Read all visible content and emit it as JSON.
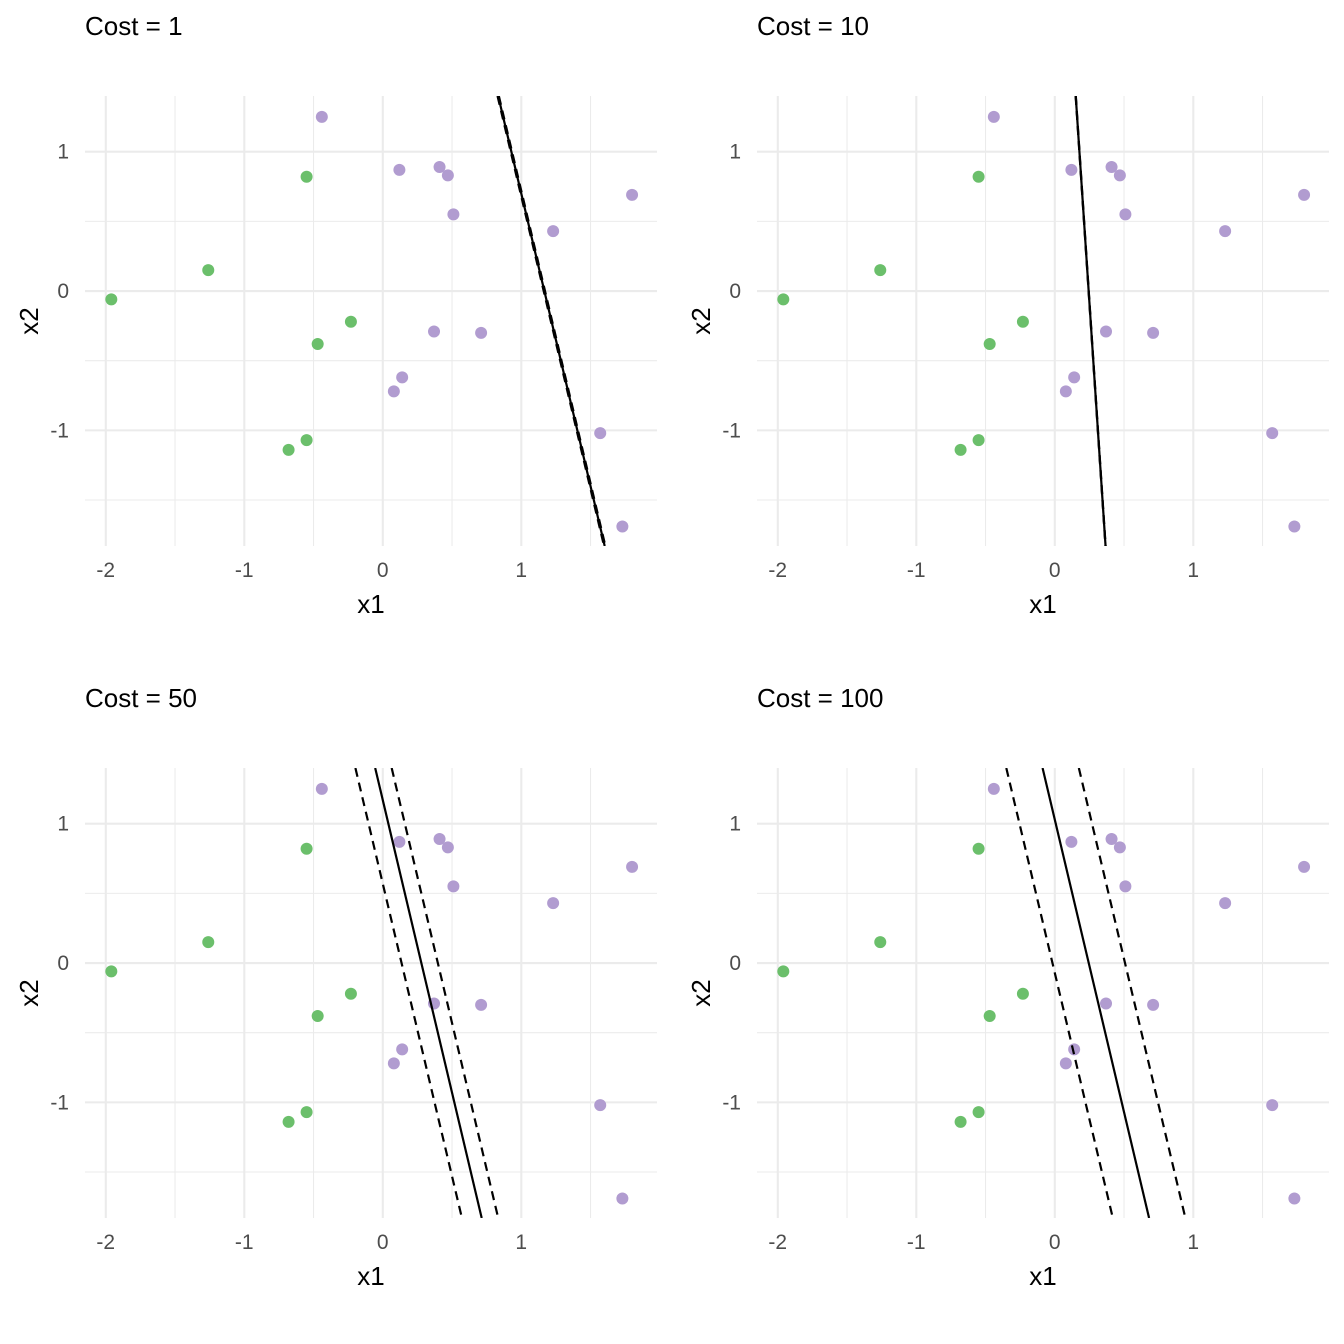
{
  "chart_data": [
    {
      "type": "scatter",
      "title": "Cost = 1",
      "xlabel": "x1",
      "ylabel": "x2",
      "xlim": [
        -2.15,
        1.98
      ],
      "ylim": [
        -1.83,
        1.4
      ],
      "xticks": [
        -2,
        -1,
        0,
        1
      ],
      "yticks": [
        -1,
        0,
        1
      ],
      "grid": true,
      "legend": "none",
      "series": [
        {
          "color": "#6BBF6B",
          "points": [
            [
              -1.96,
              -0.06
            ],
            [
              -1.26,
              0.15
            ],
            [
              -0.55,
              0.82
            ],
            [
              -0.47,
              -0.38
            ],
            [
              -0.23,
              -0.22
            ],
            [
              -0.55,
              -1.07
            ],
            [
              -0.68,
              -1.14
            ]
          ]
        },
        {
          "color": "#B19CD0",
          "points": [
            [
              -0.44,
              1.25
            ],
            [
              0.12,
              0.87
            ],
            [
              0.41,
              0.89
            ],
            [
              0.47,
              0.83
            ],
            [
              0.51,
              0.55
            ],
            [
              1.23,
              0.43
            ],
            [
              1.8,
              0.69
            ],
            [
              0.37,
              -0.29
            ],
            [
              0.71,
              -0.3
            ],
            [
              0.14,
              -0.62
            ],
            [
              0.08,
              -0.72
            ],
            [
              1.57,
              -1.02
            ],
            [
              1.73,
              -1.69
            ]
          ]
        }
      ],
      "lines": [
        {
          "style": "solid",
          "intercept": 4.9,
          "slope": -4.2
        },
        {
          "style": "dashed",
          "intercept": 4.88,
          "slope": -4.2
        },
        {
          "style": "dashed",
          "intercept": 4.92,
          "slope": -4.2
        }
      ]
    },
    {
      "type": "scatter",
      "title": "Cost = 10",
      "xlabel": "x1",
      "ylabel": "x2",
      "xlim": [
        -2.15,
        1.98
      ],
      "ylim": [
        -1.83,
        1.4
      ],
      "xticks": [
        -2,
        -1,
        0,
        1
      ],
      "yticks": [
        -1,
        0,
        1
      ],
      "grid": true,
      "legend": "none",
      "series": [
        {
          "color": "#6BBF6B",
          "points": [
            [
              -1.96,
              -0.06
            ],
            [
              -1.26,
              0.15
            ],
            [
              -0.55,
              0.82
            ],
            [
              -0.47,
              -0.38
            ],
            [
              -0.23,
              -0.22
            ],
            [
              -0.55,
              -1.07
            ],
            [
              -0.68,
              -1.14
            ]
          ]
        },
        {
          "color": "#B19CD0",
          "points": [
            [
              -0.44,
              1.25
            ],
            [
              0.12,
              0.87
            ],
            [
              0.41,
              0.89
            ],
            [
              0.47,
              0.83
            ],
            [
              0.51,
              0.55
            ],
            [
              1.23,
              0.43
            ],
            [
              1.8,
              0.69
            ],
            [
              0.37,
              -0.29
            ],
            [
              0.71,
              -0.3
            ],
            [
              0.14,
              -0.62
            ],
            [
              0.08,
              -0.72
            ],
            [
              1.57,
              -1.02
            ],
            [
              1.73,
              -1.69
            ]
          ]
        }
      ],
      "lines": [
        {
          "style": "solid",
          "intercept": 3.67,
          "slope": -15.0
        },
        {
          "style": "dashed",
          "intercept": 3.66,
          "slope": -15.0
        },
        {
          "style": "dashed",
          "intercept": 3.68,
          "slope": -15.0
        }
      ]
    },
    {
      "type": "scatter",
      "title": "Cost = 50",
      "xlabel": "x1",
      "ylabel": "x2",
      "xlim": [
        -2.15,
        1.98
      ],
      "ylim": [
        -1.83,
        1.4
      ],
      "xticks": [
        -2,
        -1,
        0,
        1
      ],
      "yticks": [
        -1,
        0,
        1
      ],
      "grid": true,
      "legend": "none",
      "series": [
        {
          "color": "#6BBF6B",
          "points": [
            [
              -1.96,
              -0.06
            ],
            [
              -1.26,
              0.15
            ],
            [
              -0.55,
              0.82
            ],
            [
              -0.47,
              -0.38
            ],
            [
              -0.23,
              -0.22
            ],
            [
              -0.55,
              -1.07
            ],
            [
              -0.68,
              -1.14
            ]
          ]
        },
        {
          "color": "#B19CD0",
          "points": [
            [
              -0.44,
              1.25
            ],
            [
              0.12,
              0.87
            ],
            [
              0.41,
              0.89
            ],
            [
              0.47,
              0.83
            ],
            [
              0.51,
              0.55
            ],
            [
              1.23,
              0.43
            ],
            [
              1.8,
              0.69
            ],
            [
              0.37,
              -0.29
            ],
            [
              0.71,
              -0.3
            ],
            [
              0.14,
              -0.62
            ],
            [
              0.08,
              -0.72
            ],
            [
              1.57,
              -1.02
            ],
            [
              1.73,
              -1.69
            ]
          ]
        }
      ],
      "lines": [
        {
          "style": "solid",
          "intercept": 1.17,
          "slope": -4.2
        },
        {
          "style": "dashed",
          "intercept": 0.57,
          "slope": -4.2
        },
        {
          "style": "dashed",
          "intercept": 1.67,
          "slope": -4.2
        }
      ]
    },
    {
      "type": "scatter",
      "title": "Cost = 100",
      "xlabel": "x1",
      "ylabel": "x2",
      "xlim": [
        -2.15,
        1.98
      ],
      "ylim": [
        -1.83,
        1.4
      ],
      "xticks": [
        -2,
        -1,
        0,
        1
      ],
      "yticks": [
        -1,
        0,
        1
      ],
      "grid": true,
      "legend": "none",
      "series": [
        {
          "color": "#6BBF6B",
          "points": [
            [
              -1.96,
              -0.06
            ],
            [
              -1.26,
              0.15
            ],
            [
              -0.55,
              0.82
            ],
            [
              -0.47,
              -0.38
            ],
            [
              -0.23,
              -0.22
            ],
            [
              -0.55,
              -1.07
            ],
            [
              -0.68,
              -1.14
            ]
          ]
        },
        {
          "color": "#B19CD0",
          "points": [
            [
              -0.44,
              1.25
            ],
            [
              0.12,
              0.87
            ],
            [
              0.41,
              0.89
            ],
            [
              0.47,
              0.83
            ],
            [
              0.51,
              0.55
            ],
            [
              1.23,
              0.43
            ],
            [
              1.8,
              0.69
            ],
            [
              0.37,
              -0.29
            ],
            [
              0.71,
              -0.3
            ],
            [
              0.14,
              -0.62
            ],
            [
              0.08,
              -0.72
            ],
            [
              1.57,
              -1.02
            ],
            [
              1.73,
              -1.69
            ]
          ]
        }
      ],
      "lines": [
        {
          "style": "solid",
          "intercept": 1.03,
          "slope": -4.2
        },
        {
          "style": "dashed",
          "intercept": -0.07,
          "slope": -4.2
        },
        {
          "style": "dashed",
          "intercept": 2.13,
          "slope": -4.2
        }
      ]
    }
  ]
}
